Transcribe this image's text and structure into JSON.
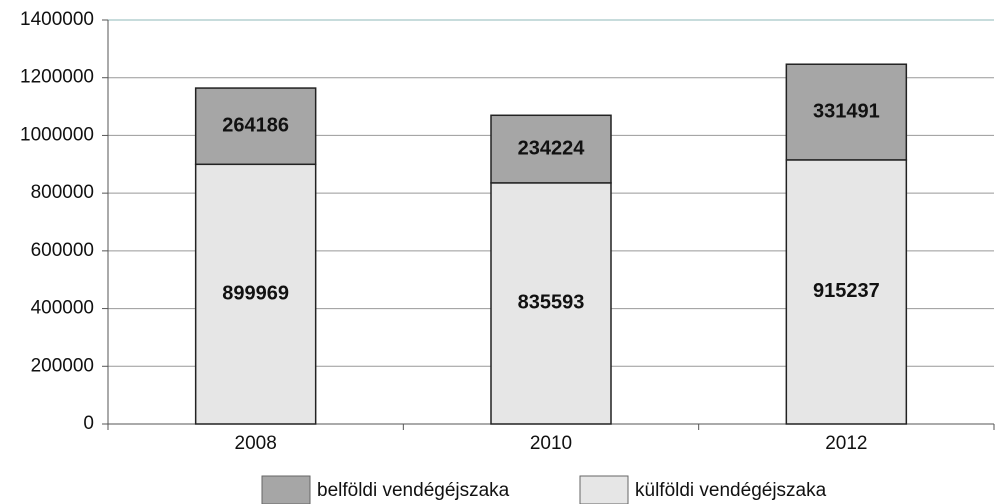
{
  "chart_data": {
    "type": "stacked_bar",
    "categories": [
      "2008",
      "2010",
      "2012"
    ],
    "series": [
      {
        "name": "belföldi vendégéjszaka",
        "color": "#a6a6a6",
        "values": [
          264186,
          234224,
          331491
        ]
      },
      {
        "name": "külföldi vendégéjszaka",
        "color": "#e6e6e6",
        "values": [
          899969,
          835593,
          915237
        ]
      }
    ],
    "ylim": [
      0,
      1400000
    ],
    "yticks": [
      0,
      200000,
      400000,
      600000,
      800000,
      1000000,
      1200000,
      1400000
    ],
    "grid": true,
    "legend": "bottom"
  }
}
